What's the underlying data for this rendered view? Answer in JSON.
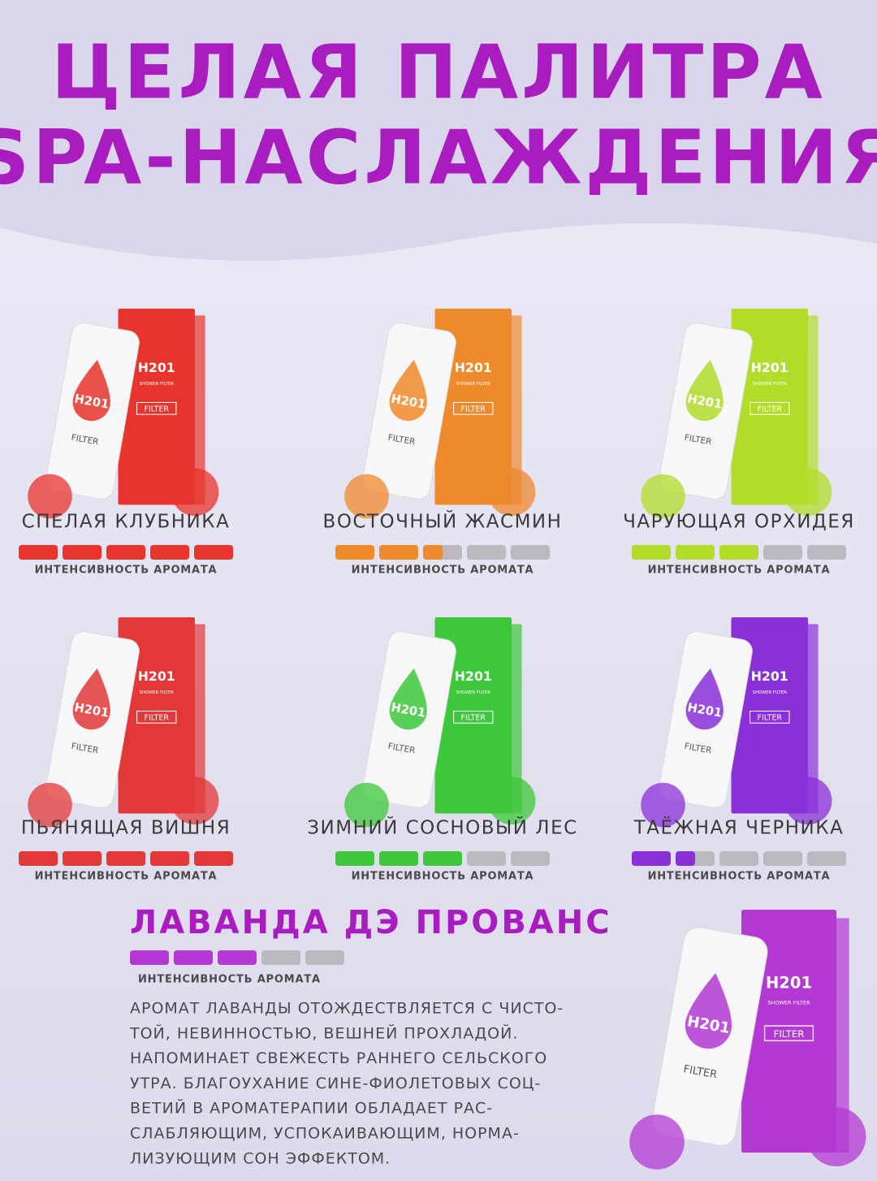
{
  "title": [
    "ЦЕЛАЯ ПАЛИТРА",
    "SPA-НАСЛАЖДЕНИЯ"
  ],
  "brand": "H201",
  "brand_subtitle": "SHOWER FILTER",
  "filter_label": "FILTER",
  "intensity_label": "ИНТЕНСИВНОСТЬ АРОМАТА",
  "intensity_max": 5,
  "products": [
    {
      "name": "СПЕЛАЯ КЛУБНИКА",
      "intensity": 5,
      "color": "#e8342c"
    },
    {
      "name": "ВОСТОЧНЫЙ ЖАСМИН",
      "intensity": 2.5,
      "color": "#ef8a2c"
    },
    {
      "name": "ЧАРУЮЩАЯ ОРХИДЕЯ",
      "intensity": 3,
      "color": "#b2dc2a"
    },
    {
      "name": "ПЬЯНЯЩАЯ ВИШНЯ",
      "intensity": 5,
      "color": "#e23838"
    },
    {
      "name": "ЗИМНИЙ СОСНОВЫЙ ЛЕС",
      "intensity": 3,
      "color": "#3cc83a"
    },
    {
      "name": "ТАЁЖНАЯ ЧЕРНИКА",
      "intensity": 1.5,
      "color": "#8a30d8"
    }
  ],
  "featured": {
    "name": "ЛАВАНДА ДЭ ПРОВАНС",
    "intensity": 3,
    "color": "#b338d4",
    "description": [
      "АРОМАТ ЛАВАНДЫ ОТОЖДЕСТВЛЯЕТСЯ С ЧИСТО-",
      "ТОЙ, НЕВИННОСТЬЮ, ВЕШНЕЙ ПРОХЛАДОЙ.",
      "НАПОМИНАЕТ СВЕЖЕСТЬ РАННЕГО СЕЛЬСКОГО",
      "УТРА. БЛАГОУХАНИЕ СИНЕ-ФИОЛЕТОВЫХ СОЦ-",
      "ВЕТИЙ В АРОМАТЕРАПИИ ОБЛАДАЕТ РАС-",
      "СЛАБЛЯЮЩИМ, УСПОКАИВАЮЩИМ, НОРМА-",
      "ЛИЗУЮЩИМ СОН ЭФФЕКТОМ."
    ]
  }
}
